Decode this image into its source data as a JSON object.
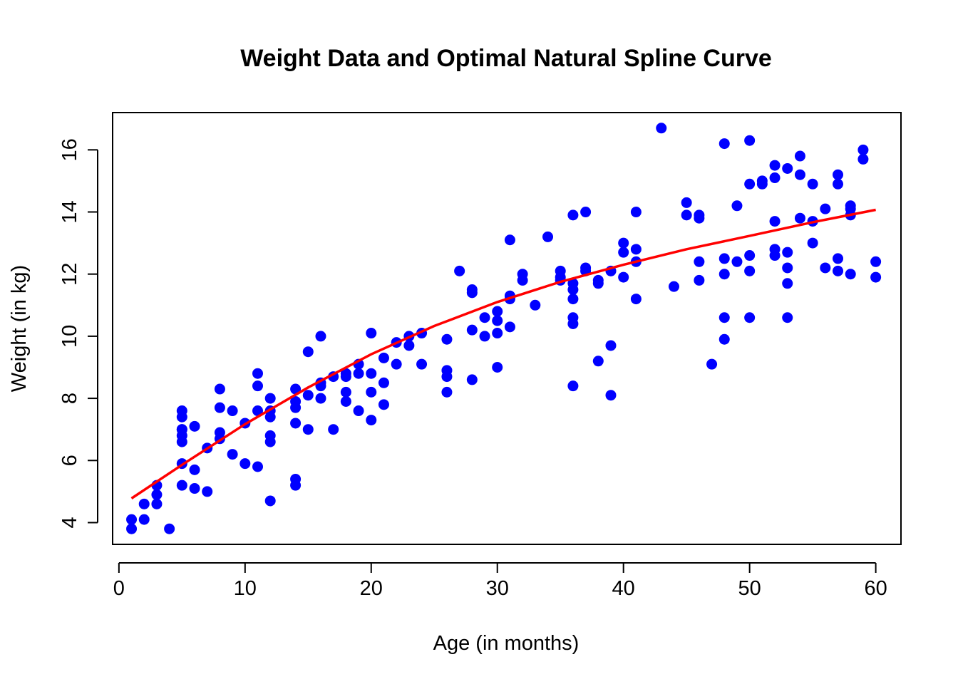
{
  "chart_data": {
    "type": "scatter",
    "title": "Weight Data and Optimal Natural Spline Curve",
    "xlabel": "Age (in months)",
    "ylabel": "Weight (in kg)",
    "xlim": [
      -0.5,
      62.0
    ],
    "ylim": [
      3.3,
      17.2
    ],
    "xticks": [
      0,
      10,
      20,
      30,
      40,
      50,
      60
    ],
    "yticks": [
      4,
      6,
      8,
      10,
      12,
      14,
      16
    ],
    "grid": false,
    "legend": "none",
    "colors": {
      "points": "#0000ff",
      "curve": "#ff0000"
    },
    "series": [
      {
        "type": "scatter",
        "x": [
          1,
          1,
          2,
          2,
          3,
          3,
          3,
          4,
          5,
          5,
          5,
          5,
          5,
          5,
          5,
          5,
          6,
          6,
          6,
          7,
          7,
          8,
          8,
          8,
          8,
          9,
          9,
          10,
          10,
          11,
          11,
          11,
          11,
          12,
          12,
          12,
          12,
          12,
          12,
          14,
          14,
          14,
          14,
          14,
          14,
          15,
          15,
          15,
          16,
          16,
          16,
          16,
          17,
          17,
          18,
          18,
          18,
          18,
          19,
          19,
          19,
          20,
          20,
          20,
          20,
          21,
          21,
          21,
          22,
          22,
          23,
          23,
          24,
          24,
          26,
          26,
          26,
          26,
          27,
          28,
          28,
          28,
          28,
          29,
          29,
          30,
          30,
          30,
          30,
          31,
          31,
          31,
          31,
          32,
          32,
          33,
          34,
          35,
          35,
          35,
          36,
          36,
          36,
          36,
          36,
          36,
          36,
          37,
          37,
          37,
          38,
          38,
          38,
          39,
          39,
          39,
          40,
          40,
          40,
          41,
          41,
          41,
          41,
          43,
          44,
          45,
          45,
          46,
          46,
          46,
          46,
          47,
          48,
          48,
          48,
          48,
          48,
          49,
          49,
          50,
          50,
          50,
          50,
          50,
          51,
          51,
          52,
          52,
          52,
          52,
          52,
          53,
          53,
          53,
          53,
          53,
          54,
          54,
          54,
          55,
          55,
          55,
          56,
          56,
          57,
          57,
          57,
          57,
          58,
          58,
          58,
          58,
          59,
          59,
          60,
          60
        ],
        "y": [
          4.1,
          3.8,
          4.6,
          4.1,
          5.2,
          4.9,
          4.6,
          3.8,
          7.6,
          7.4,
          7.0,
          6.8,
          6.6,
          5.9,
          5.2,
          7.0,
          7.1,
          5.7,
          5.1,
          6.4,
          5.0,
          8.3,
          7.7,
          6.9,
          6.7,
          7.6,
          6.2,
          7.2,
          5.9,
          8.8,
          8.4,
          7.6,
          5.8,
          8.0,
          7.6,
          7.4,
          6.8,
          6.6,
          4.7,
          8.3,
          7.9,
          7.7,
          7.2,
          5.4,
          5.2,
          9.5,
          8.1,
          7.0,
          10.0,
          8.5,
          8.4,
          8.0,
          8.7,
          7.0,
          8.8,
          8.7,
          8.2,
          7.9,
          9.1,
          8.8,
          7.6,
          10.1,
          8.8,
          8.2,
          7.3,
          9.3,
          8.5,
          7.8,
          9.8,
          9.1,
          10.0,
          9.7,
          10.1,
          9.1,
          9.9,
          8.9,
          8.7,
          8.2,
          12.1,
          11.5,
          11.4,
          10.2,
          8.6,
          10.6,
          10.0,
          10.8,
          10.5,
          10.1,
          9.0,
          13.1,
          11.3,
          11.2,
          10.3,
          12.0,
          11.8,
          11.0,
          13.2,
          12.1,
          11.9,
          11.8,
          13.9,
          11.7,
          11.5,
          11.2,
          10.6,
          10.4,
          8.4,
          14.0,
          12.2,
          12.1,
          11.8,
          11.7,
          9.2,
          12.1,
          9.7,
          8.1,
          13.0,
          12.7,
          11.9,
          14.0,
          12.8,
          12.4,
          11.2,
          16.7,
          11.6,
          14.3,
          13.9,
          13.9,
          13.8,
          12.4,
          11.8,
          9.1,
          16.2,
          12.5,
          12.0,
          10.6,
          9.9,
          14.2,
          12.4,
          16.3,
          14.9,
          12.6,
          12.1,
          10.6,
          15.0,
          14.9,
          15.5,
          15.1,
          13.7,
          12.8,
          12.6,
          15.4,
          12.7,
          12.2,
          11.7,
          10.6,
          15.8,
          15.2,
          13.8,
          14.9,
          13.7,
          13.0,
          14.1,
          12.2,
          15.2,
          14.9,
          12.5,
          12.1,
          14.2,
          14.1,
          13.9,
          12.0,
          16.0,
          15.7,
          12.4,
          11.9
        ]
      },
      {
        "type": "line",
        "x": [
          1,
          5,
          10,
          15,
          20,
          25,
          30,
          35,
          40,
          45,
          50,
          55,
          60
        ],
        "y": [
          4.78,
          5.86,
          7.17,
          8.35,
          9.42,
          10.33,
          11.1,
          11.75,
          12.3,
          12.8,
          13.23,
          13.67,
          14.07
        ]
      }
    ]
  }
}
